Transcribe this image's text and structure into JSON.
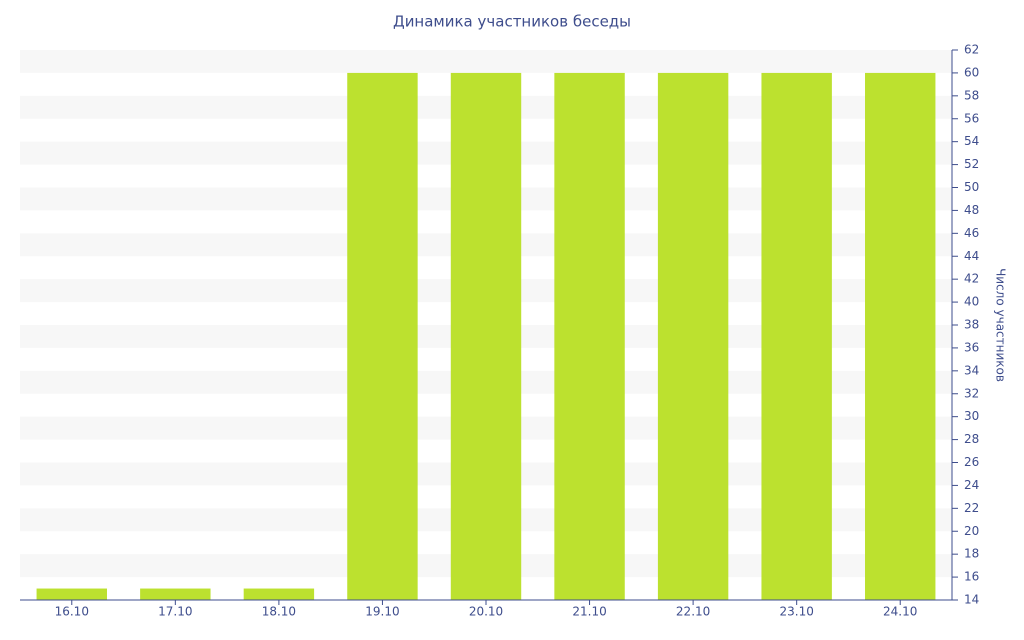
{
  "chart_data": {
    "type": "bar",
    "title": "Динамика участников беседы",
    "y_label": "Число участников",
    "categories": [
      "16.10",
      "17.10",
      "18.10",
      "19.10",
      "20.10",
      "21.10",
      "22.10",
      "23.10",
      "24.10"
    ],
    "values": [
      15,
      15,
      15,
      60,
      60,
      60,
      60,
      60,
      60
    ],
    "color": "#bce12f",
    "ylim": [
      14,
      62
    ],
    "yticks": [
      14,
      16,
      18,
      20,
      22,
      24,
      26,
      28,
      30,
      32,
      34,
      36,
      38,
      40,
      42,
      44,
      46,
      48,
      50,
      52,
      54,
      56,
      58,
      60,
      62
    ],
    "grid": true
  }
}
